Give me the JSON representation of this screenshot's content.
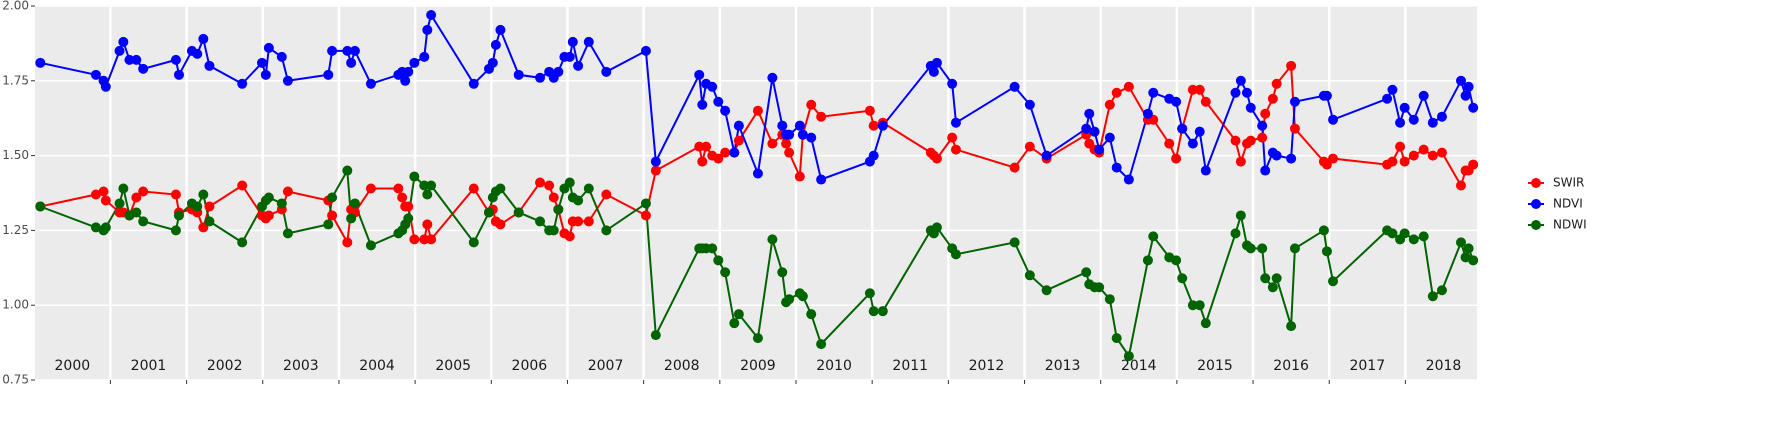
{
  "chart_data": {
    "type": "line",
    "x": [
      2000.08,
      2000.81,
      2000.91,
      2000.94,
      2001.12,
      2001.17,
      2001.25,
      2001.34,
      2001.43,
      2001.86,
      2001.9,
      2002.07,
      2002.14,
      2002.22,
      2002.3,
      2002.73,
      2002.99,
      2003.04,
      2003.08,
      2003.25,
      2003.33,
      2003.86,
      2003.91,
      2004.11,
      2004.16,
      2004.21,
      2004.42,
      2004.78,
      2004.83,
      2004.87,
      2004.91,
      2004.99,
      2005.12,
      2005.16,
      2005.21,
      2005.77,
      2005.97,
      2006.02,
      2006.06,
      2006.12,
      2006.36,
      2006.64,
      2006.76,
      2006.82,
      2006.88,
      2006.96,
      2007.03,
      2007.07,
      2007.14,
      2007.28,
      2007.51,
      2008.03,
      2008.16,
      2008.73,
      2008.77,
      2008.82,
      2008.9,
      2008.98,
      2009.07,
      2009.19,
      2009.25,
      2009.5,
      2009.69,
      2009.82,
      2009.87,
      2009.91,
      2010.05,
      2010.09,
      2010.2,
      2010.33,
      2010.97,
      2011.02,
      2011.14,
      2011.77,
      2011.81,
      2011.85,
      2012.05,
      2012.1,
      2012.87,
      2013.07,
      2013.29,
      2013.81,
      2013.85,
      2013.92,
      2013.98,
      2014.12,
      2014.21,
      2014.37,
      2014.62,
      2014.69,
      2014.9,
      2014.99,
      2015.07,
      2015.21,
      2015.3,
      2015.38,
      2015.77,
      2015.84,
      2015.92,
      2015.97,
      2016.12,
      2016.16,
      2016.26,
      2016.31,
      2016.5,
      2016.55,
      2016.93,
      2016.97,
      2017.05,
      2017.76,
      2017.83,
      2017.93,
      2017.99,
      2018.11,
      2018.24,
      2018.36,
      2018.48,
      2018.73,
      2018.79,
      2018.83,
      2018.89
    ],
    "series": [
      {
        "name": "SWIR",
        "color": "#ff0000",
        "values": [
          1.33,
          1.37,
          1.38,
          1.35,
          1.31,
          1.31,
          1.3,
          1.36,
          1.38,
          1.37,
          1.31,
          1.32,
          1.31,
          1.26,
          1.33,
          1.4,
          1.3,
          1.29,
          1.3,
          1.32,
          1.38,
          1.35,
          1.3,
          1.21,
          1.32,
          1.31,
          1.39,
          1.39,
          1.36,
          1.33,
          1.33,
          1.22,
          1.22,
          1.27,
          1.22,
          1.39,
          1.31,
          1.32,
          1.28,
          1.27,
          1.31,
          1.41,
          1.4,
          1.36,
          1.32,
          1.24,
          1.23,
          1.28,
          1.28,
          1.28,
          1.37,
          1.3,
          1.45,
          1.53,
          1.48,
          1.53,
          1.5,
          1.49,
          1.51,
          1.51,
          1.55,
          1.65,
          1.54,
          1.57,
          1.54,
          1.51,
          1.43,
          1.57,
          1.67,
          1.63,
          1.65,
          1.6,
          1.61,
          1.51,
          1.5,
          1.49,
          1.56,
          1.52,
          1.46,
          1.53,
          1.49,
          1.57,
          1.54,
          1.52,
          1.51,
          1.67,
          1.71,
          1.73,
          1.62,
          1.62,
          1.54,
          1.49,
          1.59,
          1.72,
          1.72,
          1.68,
          1.55,
          1.48,
          1.54,
          1.55,
          1.56,
          1.64,
          1.69,
          1.74,
          1.8,
          1.59,
          1.48,
          1.47,
          1.49,
          1.47,
          1.48,
          1.53,
          1.48,
          1.5,
          1.52,
          1.5,
          1.51,
          1.4,
          1.45,
          1.45,
          1.47
        ]
      },
      {
        "name": "NDVI",
        "color": "#0000ff",
        "values": [
          1.81,
          1.77,
          1.75,
          1.73,
          1.85,
          1.88,
          1.82,
          1.82,
          1.79,
          1.82,
          1.77,
          1.85,
          1.84,
          1.89,
          1.8,
          1.74,
          1.81,
          1.77,
          1.86,
          1.83,
          1.75,
          1.77,
          1.85,
          1.85,
          1.81,
          1.85,
          1.74,
          1.77,
          1.78,
          1.75,
          1.78,
          1.81,
          1.83,
          1.92,
          1.97,
          1.74,
          1.79,
          1.81,
          1.87,
          1.92,
          1.77,
          1.76,
          1.78,
          1.76,
          1.78,
          1.83,
          1.83,
          1.88,
          1.8,
          1.88,
          1.78,
          1.85,
          1.48,
          1.77,
          1.67,
          1.74,
          1.73,
          1.68,
          1.65,
          1.51,
          1.6,
          1.44,
          1.76,
          1.6,
          1.57,
          1.57,
          1.6,
          1.57,
          1.56,
          1.42,
          1.48,
          1.5,
          1.6,
          1.8,
          1.78,
          1.81,
          1.74,
          1.61,
          1.73,
          1.67,
          1.5,
          1.59,
          1.64,
          1.58,
          1.52,
          1.56,
          1.46,
          1.42,
          1.64,
          1.71,
          1.69,
          1.68,
          1.59,
          1.54,
          1.58,
          1.45,
          1.71,
          1.75,
          1.71,
          1.66,
          1.6,
          1.45,
          1.51,
          1.5,
          1.49,
          1.68,
          1.7,
          1.7,
          1.62,
          1.69,
          1.72,
          1.61,
          1.66,
          1.62,
          1.7,
          1.61,
          1.63,
          1.75,
          1.7,
          1.73,
          1.66
        ]
      },
      {
        "name": "NDWI",
        "color": "#006400",
        "values": [
          1.33,
          1.26,
          1.25,
          1.26,
          1.34,
          1.39,
          1.3,
          1.31,
          1.28,
          1.25,
          1.3,
          1.34,
          1.33,
          1.37,
          1.28,
          1.21,
          1.33,
          1.35,
          1.36,
          1.34,
          1.24,
          1.27,
          1.36,
          1.45,
          1.29,
          1.34,
          1.2,
          1.24,
          1.25,
          1.27,
          1.29,
          1.43,
          1.4,
          1.37,
          1.4,
          1.21,
          1.31,
          1.36,
          1.38,
          1.39,
          1.31,
          1.28,
          1.25,
          1.25,
          1.32,
          1.39,
          1.41,
          1.36,
          1.35,
          1.39,
          1.25,
          1.34,
          0.9,
          1.19,
          1.19,
          1.19,
          1.19,
          1.15,
          1.11,
          0.94,
          0.97,
          0.89,
          1.22,
          1.11,
          1.01,
          1.02,
          1.04,
          1.03,
          0.97,
          0.87,
          1.04,
          0.98,
          0.98,
          1.25,
          1.24,
          1.26,
          1.19,
          1.17,
          1.21,
          1.1,
          1.05,
          1.11,
          1.07,
          1.06,
          1.06,
          1.02,
          0.89,
          0.83,
          1.15,
          1.23,
          1.16,
          1.15,
          1.09,
          1.0,
          1.0,
          0.94,
          1.24,
          1.3,
          1.2,
          1.19,
          1.19,
          1.09,
          1.06,
          1.09,
          0.93,
          1.19,
          1.25,
          1.18,
          1.08,
          1.25,
          1.24,
          1.22,
          1.24,
          1.22,
          1.23,
          1.03,
          1.05,
          1.21,
          1.16,
          1.19,
          1.15
        ]
      }
    ],
    "xlim": [
      2000.01,
      2018.94
    ],
    "xticks": [
      {
        "value": 2000.5,
        "label": "2000"
      },
      {
        "value": 2001.5,
        "label": "2001"
      },
      {
        "value": 2002.5,
        "label": "2002"
      },
      {
        "value": 2003.5,
        "label": "2003"
      },
      {
        "value": 2004.5,
        "label": "2004"
      },
      {
        "value": 2005.5,
        "label": "2005"
      },
      {
        "value": 2006.5,
        "label": "2006"
      },
      {
        "value": 2007.5,
        "label": "2007"
      },
      {
        "value": 2008.5,
        "label": "2008"
      },
      {
        "value": 2009.5,
        "label": "2009"
      },
      {
        "value": 2010.5,
        "label": "2010"
      },
      {
        "value": 2011.5,
        "label": "2011"
      },
      {
        "value": 2012.5,
        "label": "2012"
      },
      {
        "value": 2013.5,
        "label": "2013"
      },
      {
        "value": 2014.5,
        "label": "2014"
      },
      {
        "value": 2015.5,
        "label": "2015"
      },
      {
        "value": 2016.5,
        "label": "2016"
      },
      {
        "value": 2017.5,
        "label": "2017"
      },
      {
        "value": 2018.5,
        "label": "2018"
      }
    ],
    "xgrid": [
      2001,
      2002,
      2003,
      2004,
      2005,
      2006,
      2007,
      2008,
      2009,
      2010,
      2011,
      2012,
      2013,
      2014,
      2015,
      2016,
      2017,
      2018
    ],
    "ylim": [
      0.75,
      2.0
    ],
    "yticks": [
      0.75,
      {
        "value": 1,
        "label": "1.00"
      },
      1.25,
      {
        "value": 1.5,
        "label": "1.50"
      },
      1.75,
      {
        "value": 2,
        "label": "2.00"
      }
    ],
    "grid": true,
    "legend": "right"
  }
}
